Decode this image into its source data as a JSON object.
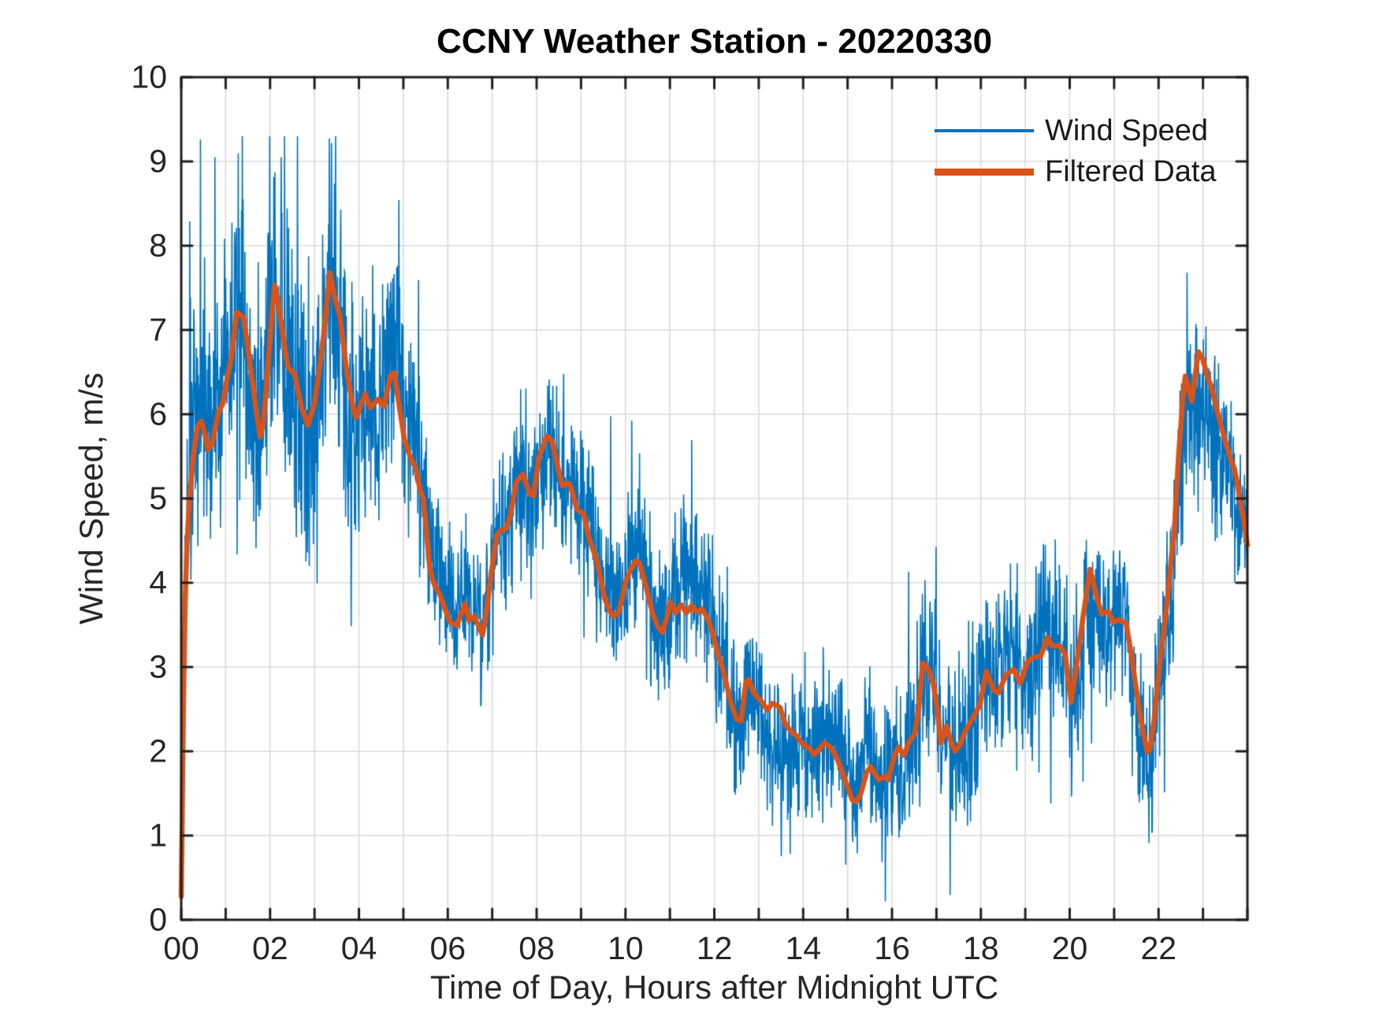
{
  "chart_data": {
    "type": "line",
    "title": "CCNY Weather Station - 20220330",
    "xlabel": "Time of Day, Hours after Midnight UTC",
    "ylabel": "Wind Speed, m/s",
    "xlim": [
      0,
      24
    ],
    "ylim": [
      0,
      10
    ],
    "x_tick_values": [
      0,
      2,
      4,
      6,
      8,
      10,
      12,
      14,
      16,
      18,
      20,
      22
    ],
    "x_tick_labels": [
      "00",
      "02",
      "04",
      "06",
      "08",
      "10",
      "12",
      "14",
      "16",
      "18",
      "20",
      "22"
    ],
    "x_minor_tick_step": 1,
    "y_tick_values": [
      0,
      1,
      2,
      3,
      4,
      5,
      6,
      7,
      8,
      9,
      10
    ],
    "y_tick_labels": [
      "0",
      "1",
      "2",
      "3",
      "4",
      "5",
      "6",
      "7",
      "8",
      "9",
      "10"
    ],
    "grid": {
      "show": true,
      "x_step": 1,
      "y_step": 1,
      "color": "#DBDBDB"
    },
    "axes_color": "#1F1F1F",
    "background": "#FFFFFF",
    "legend": {
      "position": "northeast",
      "boxed": false,
      "entries": [
        {
          "label": "Wind Speed",
          "color": "#0072BD",
          "line_width": 1.6
        },
        {
          "label": "Filtered Data",
          "color": "#D95319",
          "line_width": 6.5
        }
      ]
    },
    "series": [
      {
        "name": "Wind Speed",
        "kind": "raw_noisy",
        "color": "#0072BD",
        "line_width": 1.6,
        "description": "High-rate wind-speed signal scattered about the filtered curve; spikes reach ~9.2 m/s near 01-03 h and ~8.4 m/s near 22.5 h, with dips below 1 m/s between 12 h and 22 h.",
        "synth": {
          "seed": 9,
          "samples_per_hour": 120,
          "base_gain": 1.8,
          "spike_probability": 0.05,
          "spike_gain": 2.1,
          "wander_gain": 1.2,
          "clamp": [
            0.22,
            9.3
          ]
        },
        "noise_envelope": [
          [
            0,
            1.0
          ],
          [
            0.5,
            1.05
          ],
          [
            1,
            1.15
          ],
          [
            1.5,
            1.2
          ],
          [
            2,
            1.2
          ],
          [
            2.5,
            1.15
          ],
          [
            3,
            1.15
          ],
          [
            3.5,
            1.1
          ],
          [
            4,
            1.0
          ],
          [
            4.5,
            0.95
          ],
          [
            5,
            0.85
          ],
          [
            5.5,
            0.7
          ],
          [
            6,
            0.55
          ],
          [
            6.5,
            0.55
          ],
          [
            7,
            0.65
          ],
          [
            7.5,
            0.72
          ],
          [
            8,
            0.75
          ],
          [
            8.5,
            0.7
          ],
          [
            9,
            0.65
          ],
          [
            9.5,
            0.62
          ],
          [
            10,
            0.6
          ],
          [
            10.5,
            0.62
          ],
          [
            11,
            0.62
          ],
          [
            11.5,
            0.62
          ],
          [
            12,
            0.6
          ],
          [
            12.5,
            0.58
          ],
          [
            13,
            0.55
          ],
          [
            13.5,
            0.55
          ],
          [
            14,
            0.52
          ],
          [
            14.5,
            0.52
          ],
          [
            15,
            0.55
          ],
          [
            15.5,
            0.55
          ],
          [
            16,
            0.62
          ],
          [
            16.5,
            0.65
          ],
          [
            17,
            0.65
          ],
          [
            17.5,
            0.62
          ],
          [
            18,
            0.72
          ],
          [
            18.5,
            0.68
          ],
          [
            19,
            0.65
          ],
          [
            19.5,
            0.72
          ],
          [
            20,
            0.72
          ],
          [
            20.5,
            0.68
          ],
          [
            21,
            0.6
          ],
          [
            21.5,
            0.6
          ],
          [
            22,
            0.68
          ],
          [
            22.5,
            0.78
          ],
          [
            23,
            0.75
          ],
          [
            23.5,
            0.7
          ],
          [
            24,
            0.62
          ]
        ]
      },
      {
        "name": "Filtered Data",
        "kind": "smoothed",
        "color": "#D95319",
        "line_width": 6.5,
        "points": [
          [
            0,
            0.28
          ],
          [
            0.02,
            1.1
          ],
          [
            0.05,
            2.6
          ],
          [
            0.09,
            3.8
          ],
          [
            0.13,
            4.45
          ],
          [
            0.18,
            4.95
          ],
          [
            0.27,
            5.5
          ],
          [
            0.36,
            5.84
          ],
          [
            0.45,
            5.92
          ],
          [
            0.54,
            5.75
          ],
          [
            0.6,
            5.58
          ],
          [
            0.69,
            5.64
          ],
          [
            0.75,
            5.8
          ],
          [
            0.84,
            6.03
          ],
          [
            0.93,
            6.12
          ],
          [
            1.01,
            6.36
          ],
          [
            1.13,
            6.68
          ],
          [
            1.25,
            7.21
          ],
          [
            1.4,
            7.15
          ],
          [
            1.5,
            6.8
          ],
          [
            1.6,
            6.4
          ],
          [
            1.7,
            6.0
          ],
          [
            1.78,
            5.73
          ],
          [
            1.85,
            5.9
          ],
          [
            1.95,
            6.55
          ],
          [
            2.02,
            7.05
          ],
          [
            2.1,
            7.53
          ],
          [
            2.18,
            7.35
          ],
          [
            2.3,
            6.9
          ],
          [
            2.4,
            6.56
          ],
          [
            2.55,
            6.48
          ],
          [
            2.7,
            6.1
          ],
          [
            2.85,
            5.87
          ],
          [
            3.0,
            6.12
          ],
          [
            3.1,
            6.5
          ],
          [
            3.2,
            6.92
          ],
          [
            3.35,
            7.68
          ],
          [
            3.45,
            7.4
          ],
          [
            3.58,
            7.14
          ],
          [
            3.73,
            6.49
          ],
          [
            3.88,
            6.05
          ],
          [
            3.94,
            5.96
          ],
          [
            4.05,
            6.12
          ],
          [
            4.14,
            6.24
          ],
          [
            4.26,
            6.08
          ],
          [
            4.44,
            6.18
          ],
          [
            4.56,
            6.09
          ],
          [
            4.71,
            6.46
          ],
          [
            4.8,
            6.49
          ],
          [
            4.92,
            6.05
          ],
          [
            5.03,
            5.68
          ],
          [
            5.15,
            5.5
          ],
          [
            5.27,
            5.37
          ],
          [
            5.38,
            5.1
          ],
          [
            5.45,
            5.0
          ],
          [
            5.51,
            4.69
          ],
          [
            5.59,
            4.19
          ],
          [
            5.68,
            4.0
          ],
          [
            5.83,
            3.85
          ],
          [
            6.04,
            3.54
          ],
          [
            6.2,
            3.49
          ],
          [
            6.39,
            3.75
          ],
          [
            6.48,
            3.55
          ],
          [
            6.6,
            3.6
          ],
          [
            6.72,
            3.45
          ],
          [
            6.78,
            3.38
          ],
          [
            6.84,
            3.54
          ],
          [
            6.98,
            4.12
          ],
          [
            7.1,
            4.56
          ],
          [
            7.19,
            4.62
          ],
          [
            7.31,
            4.64
          ],
          [
            7.4,
            4.78
          ],
          [
            7.54,
            5.19
          ],
          [
            7.69,
            5.29
          ],
          [
            7.84,
            5.06
          ],
          [
            7.93,
            5.03
          ],
          [
            8.05,
            5.49
          ],
          [
            8.23,
            5.74
          ],
          [
            8.35,
            5.68
          ],
          [
            8.49,
            5.34
          ],
          [
            8.58,
            5.15
          ],
          [
            8.73,
            5.18
          ],
          [
            8.79,
            5.1
          ],
          [
            8.91,
            4.87
          ],
          [
            9.06,
            4.82
          ],
          [
            9.18,
            4.53
          ],
          [
            9.36,
            4.25
          ],
          [
            9.52,
            3.84
          ],
          [
            9.64,
            3.67
          ],
          [
            9.73,
            3.6
          ],
          [
            9.85,
            3.65
          ],
          [
            10.0,
            4.0
          ],
          [
            10.11,
            4.15
          ],
          [
            10.23,
            4.26
          ],
          [
            10.32,
            4.23
          ],
          [
            10.47,
            3.94
          ],
          [
            10.62,
            3.62
          ],
          [
            10.74,
            3.47
          ],
          [
            10.83,
            3.41
          ],
          [
            10.95,
            3.62
          ],
          [
            11.01,
            3.77
          ],
          [
            11.13,
            3.64
          ],
          [
            11.25,
            3.74
          ],
          [
            11.37,
            3.64
          ],
          [
            11.49,
            3.73
          ],
          [
            11.6,
            3.65
          ],
          [
            11.72,
            3.69
          ],
          [
            11.84,
            3.59
          ],
          [
            11.96,
            3.41
          ],
          [
            12.08,
            3.16
          ],
          [
            12.18,
            3.0
          ],
          [
            12.36,
            2.6
          ],
          [
            12.5,
            2.38
          ],
          [
            12.6,
            2.36
          ],
          [
            12.71,
            2.82
          ],
          [
            12.77,
            2.85
          ],
          [
            12.89,
            2.69
          ],
          [
            13.05,
            2.6
          ],
          [
            13.19,
            2.49
          ],
          [
            13.31,
            2.57
          ],
          [
            13.48,
            2.52
          ],
          [
            13.6,
            2.32
          ],
          [
            13.72,
            2.24
          ],
          [
            13.84,
            2.19
          ],
          [
            13.96,
            2.1
          ],
          [
            14.13,
            2.04
          ],
          [
            14.25,
            1.96
          ],
          [
            14.37,
            2.03
          ],
          [
            14.49,
            2.1
          ],
          [
            14.61,
            2.05
          ],
          [
            14.73,
            1.95
          ],
          [
            14.85,
            1.8
          ],
          [
            14.97,
            1.62
          ],
          [
            15.11,
            1.42
          ],
          [
            15.2,
            1.4
          ],
          [
            15.3,
            1.5
          ],
          [
            15.43,
            1.75
          ],
          [
            15.52,
            1.82
          ],
          [
            15.63,
            1.72
          ],
          [
            15.7,
            1.66
          ],
          [
            15.82,
            1.7
          ],
          [
            15.91,
            1.66
          ],
          [
            16.06,
            1.95
          ],
          [
            16.15,
            2.05
          ],
          [
            16.27,
            1.95
          ],
          [
            16.39,
            2.12
          ],
          [
            16.51,
            2.2
          ],
          [
            16.6,
            2.5
          ],
          [
            16.69,
            3.05
          ],
          [
            16.81,
            2.98
          ],
          [
            16.93,
            2.8
          ],
          [
            17.02,
            2.5
          ],
          [
            17.1,
            2.1
          ],
          [
            17.23,
            2.3
          ],
          [
            17.32,
            2.12
          ],
          [
            17.42,
            2.0
          ],
          [
            17.54,
            2.08
          ],
          [
            17.63,
            2.22
          ],
          [
            17.75,
            2.33
          ],
          [
            17.98,
            2.55
          ],
          [
            18.12,
            2.95
          ],
          [
            18.3,
            2.72
          ],
          [
            18.39,
            2.69
          ],
          [
            18.57,
            2.91
          ],
          [
            18.74,
            2.97
          ],
          [
            18.89,
            2.81
          ],
          [
            19.04,
            3.05
          ],
          [
            19.16,
            3.11
          ],
          [
            19.35,
            3.13
          ],
          [
            19.5,
            3.35
          ],
          [
            19.6,
            3.25
          ],
          [
            19.78,
            3.25
          ],
          [
            19.9,
            3.15
          ],
          [
            20.03,
            2.58
          ],
          [
            20.15,
            3.0
          ],
          [
            20.3,
            3.6
          ],
          [
            20.46,
            4.16
          ],
          [
            20.6,
            3.85
          ],
          [
            20.72,
            3.63
          ],
          [
            20.87,
            3.66
          ],
          [
            20.98,
            3.53
          ],
          [
            21.1,
            3.56
          ],
          [
            21.27,
            3.52
          ],
          [
            21.39,
            3.14
          ],
          [
            21.51,
            2.69
          ],
          [
            21.6,
            2.38
          ],
          [
            21.69,
            2.13
          ],
          [
            21.75,
            1.99
          ],
          [
            21.81,
            2.03
          ],
          [
            21.9,
            2.37
          ],
          [
            21.99,
            2.84
          ],
          [
            22.05,
            3.15
          ],
          [
            22.14,
            3.53
          ],
          [
            22.23,
            3.96
          ],
          [
            22.29,
            4.31
          ],
          [
            22.35,
            4.56
          ],
          [
            22.45,
            5.5
          ],
          [
            22.55,
            6.2
          ],
          [
            22.6,
            6.45
          ],
          [
            22.68,
            6.3
          ],
          [
            22.75,
            6.15
          ],
          [
            22.82,
            6.45
          ],
          [
            22.9,
            6.74
          ],
          [
            23.0,
            6.65
          ],
          [
            23.09,
            6.46
          ],
          [
            23.18,
            6.34
          ],
          [
            23.27,
            6.15
          ],
          [
            23.36,
            5.96
          ],
          [
            23.45,
            5.78
          ],
          [
            23.54,
            5.62
          ],
          [
            23.62,
            5.47
          ],
          [
            23.71,
            5.35
          ],
          [
            23.77,
            5.19
          ],
          [
            23.83,
            5.0
          ],
          [
            23.89,
            4.82
          ],
          [
            23.95,
            4.63
          ],
          [
            24.0,
            4.45
          ]
        ]
      }
    ]
  }
}
